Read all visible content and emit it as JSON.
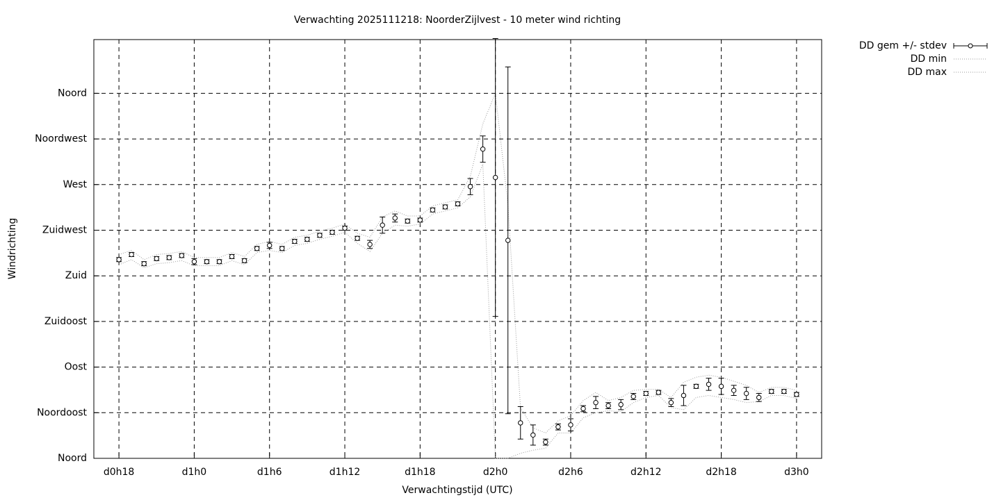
{
  "chart_data": {
    "type": "errorbar",
    "title": "Verwachting 2025111218: NoorderZijlvest - 10 meter wind richting",
    "x_label": "Verwachtingstijd (UTC)",
    "y_label": "Windrichting",
    "x": [
      18,
      19,
      20,
      21,
      22,
      23,
      24,
      25,
      26,
      27,
      28,
      29,
      30,
      31,
      32,
      33,
      34,
      35,
      36,
      37,
      38,
      39,
      40,
      41,
      42,
      43,
      44,
      45,
      46,
      47,
      48,
      49,
      50,
      51,
      52,
      53,
      54,
      55,
      56,
      57,
      58,
      59,
      60,
      61,
      62,
      63,
      64,
      65,
      66,
      67,
      68,
      69,
      70,
      71,
      72
    ],
    "xlim": [
      16,
      74
    ],
    "xticks": [
      {
        "value": 18,
        "label": "d0h18"
      },
      {
        "value": 24,
        "label": "d1h0"
      },
      {
        "value": 30,
        "label": "d1h6"
      },
      {
        "value": 36,
        "label": "d1h12"
      },
      {
        "value": 42,
        "label": "d1h18"
      },
      {
        "value": 48,
        "label": "d2h0"
      },
      {
        "value": 54,
        "label": "d2h6"
      },
      {
        "value": 60,
        "label": "d2h12"
      },
      {
        "value": 66,
        "label": "d2h18"
      },
      {
        "value": 72,
        "label": "d3h0"
      }
    ],
    "ylim": [
      0,
      413
    ],
    "yticks": [
      {
        "value": 0,
        "label": "Noord"
      },
      {
        "value": 45,
        "label": "Noordoost"
      },
      {
        "value": 90,
        "label": "Oost"
      },
      {
        "value": 135,
        "label": "Zuidoost"
      },
      {
        "value": 180,
        "label": "Zuid"
      },
      {
        "value": 225,
        "label": "Zuidwest"
      },
      {
        "value": 270,
        "label": "West"
      },
      {
        "value": 315,
        "label": "Noordwest"
      },
      {
        "value": 360,
        "label": "Noord"
      }
    ],
    "grid": true,
    "legend": "top-right",
    "series": [
      {
        "name": "DD gem +/- stdev",
        "color": "#000000",
        "values": [
          196,
          201,
          192,
          197,
          198,
          200,
          194,
          194,
          194,
          199,
          195,
          207,
          210,
          207,
          214,
          216,
          220,
          223,
          227,
          217,
          211,
          230,
          237,
          234,
          235,
          245,
          248,
          251,
          268,
          305,
          277,
          215,
          35,
          23,
          16,
          31,
          33,
          49,
          55,
          52,
          53,
          61,
          64,
          65,
          55,
          62,
          71,
          73,
          71,
          67,
          64,
          60,
          66,
          66,
          63
        ],
        "errors": [
          2,
          2,
          2,
          2,
          2,
          2,
          3,
          2,
          2,
          2,
          2,
          2,
          3,
          2,
          2,
          2,
          2,
          2,
          2,
          2,
          4,
          8,
          4,
          2,
          2,
          2,
          2,
          2,
          8,
          13,
          137,
          171,
          16,
          10,
          3,
          3,
          6,
          3,
          6,
          3,
          5,
          3,
          2,
          2,
          4,
          10,
          2,
          6,
          8,
          5,
          6,
          4,
          2,
          2,
          2
        ]
      },
      {
        "name": "DD min",
        "color": "#9a9a9a",
        "values": [
          191,
          196,
          188,
          192,
          193,
          195,
          190,
          190,
          190,
          195,
          191,
          203,
          205,
          203,
          210,
          212,
          216,
          219,
          223,
          212,
          204,
          222,
          230,
          229,
          231,
          241,
          244,
          247,
          258,
          290,
          0,
          0,
          5,
          8,
          10,
          25,
          25,
          40,
          45,
          47,
          46,
          55,
          60,
          62,
          50,
          48,
          60,
          62,
          60,
          58,
          55,
          56,
          62,
          62,
          59
        ]
      },
      {
        "name": "DD max",
        "color": "#9a9a9a",
        "values": [
          201,
          205,
          196,
          201,
          202,
          204,
          198,
          198,
          198,
          203,
          199,
          211,
          214,
          211,
          218,
          220,
          224,
          227,
          231,
          222,
          218,
          238,
          244,
          239,
          239,
          249,
          252,
          255,
          278,
          330,
          360,
          250,
          50,
          30,
          25,
          37,
          42,
          57,
          65,
          57,
          60,
          67,
          68,
          68,
          60,
          75,
          80,
          82,
          80,
          76,
          72,
          65,
          70,
          70,
          67
        ]
      }
    ]
  }
}
